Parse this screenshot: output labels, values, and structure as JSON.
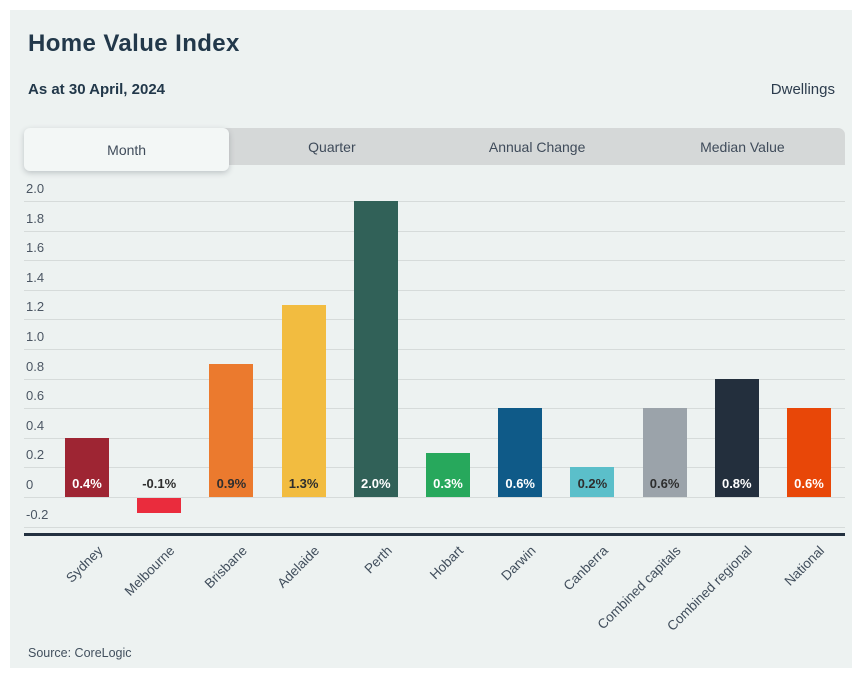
{
  "header": {
    "title": "Home Value Index",
    "subtitle": "As at 30 April, 2024",
    "right_label": "Dwellings"
  },
  "tabs": [
    {
      "label": "Month",
      "active": true
    },
    {
      "label": "Quarter",
      "active": false
    },
    {
      "label": "Annual Change",
      "active": false
    },
    {
      "label": "Median Value",
      "active": false
    }
  ],
  "chart_data": {
    "type": "bar",
    "title": "Home Value Index",
    "xlabel": "",
    "ylabel": "",
    "categories": [
      "Sydney",
      "Melbourne",
      "Brisbane",
      "Adelaide",
      "Perth",
      "Hobart",
      "Darwin",
      "Canberra",
      "Combined capitals",
      "Combined regional",
      "National"
    ],
    "values": [
      0.4,
      -0.1,
      0.9,
      1.3,
      2.0,
      0.3,
      0.6,
      0.2,
      0.6,
      0.8,
      0.6
    ],
    "bar_labels": [
      "0.4%",
      "-0.1%",
      "0.9%",
      "1.3%",
      "2.0%",
      "0.3%",
      "0.6%",
      "0.2%",
      "0.6%",
      "0.8%",
      "0.6%"
    ],
    "bar_colors": [
      "#9e2533",
      "#ea2c3d",
      "#eb7a2e",
      "#f2bc40",
      "#316158",
      "#27a85c",
      "#0f5a88",
      "#5bbfca",
      "#9ba3aa",
      "#232f3d",
      "#e84708"
    ],
    "bar_label_colors": [
      "#ffffff",
      "#2e2e2e",
      "#2e2e2e",
      "#2e2e2e",
      "#ffffff",
      "#ffffff",
      "#ffffff",
      "#2e2e2e",
      "#2e2e2e",
      "#ffffff",
      "#ffffff"
    ],
    "ylim": [
      -0.2,
      2.0
    ],
    "ytick_step": 0.2,
    "yticks": [
      "2.0",
      "1.8",
      "1.6",
      "1.4",
      "1.2",
      "1.0",
      "0.8",
      "0.6",
      "0.4",
      "0.2",
      "0",
      "-0.2"
    ],
    "grid": true,
    "legend": "none"
  },
  "footer": {
    "source_label": "Source: CoreLogic"
  },
  "colors": {
    "panel_bg": "#edf2f1",
    "tab_bar_bg": "#d5d8d8",
    "active_tab_bg": "#f3f7f6",
    "grid_line": "#d6dbda",
    "axis_line": "#233140",
    "heading_text": "#22384a"
  }
}
